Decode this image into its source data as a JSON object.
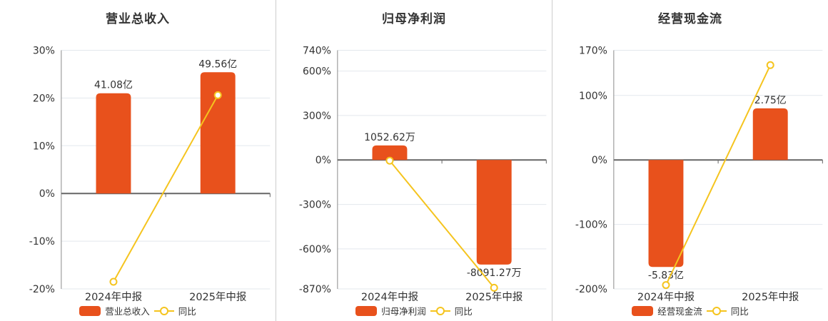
{
  "colors": {
    "bar": "#e8511c",
    "line": "#f5c41e",
    "zero_axis": "#666666",
    "y_axis_line": "#8c8c8c",
    "grid": "#e3e8ed",
    "text": "#333333",
    "divider": "#cccccc",
    "marker_fill": "#ffffff"
  },
  "chart_data": [
    {
      "type": "bar+line",
      "title": "营业总收入",
      "categories": [
        "2024年中报",
        "2025年中报"
      ],
      "bar_series": {
        "name": "营业总收入",
        "labels": [
          "41.08亿",
          "49.56亿"
        ],
        "plot_values_pct": [
          21.0,
          25.4
        ]
      },
      "line_series": {
        "name": "同比",
        "values_pct": [
          -18.5,
          20.6
        ]
      },
      "ylim": [
        -20,
        30
      ],
      "y_ticks_pct": [
        30,
        20,
        10,
        0,
        -10,
        -20
      ],
      "y_tick_labels": [
        "30%",
        "20%",
        "10%",
        "0%",
        "-10%",
        "-20%"
      ],
      "legend": [
        "营业总收入",
        "同比"
      ],
      "legend_position": "bottom",
      "grid": "on"
    },
    {
      "type": "bar+line",
      "title": "归母净利润",
      "categories": [
        "2024年中报",
        "2025年中报"
      ],
      "bar_series": {
        "name": "归母净利润",
        "labels": [
          "1052.62万",
          "-8091.27万"
        ],
        "plot_values_pct": [
          98,
          -706
        ]
      },
      "line_series": {
        "name": "同比",
        "values_pct": [
          -5,
          -862
        ]
      },
      "ylim": [
        -870,
        740
      ],
      "y_ticks_pct": [
        740,
        600,
        300,
        0,
        -300,
        -600,
        -870
      ],
      "y_tick_labels": [
        "740%",
        "600%",
        "300%",
        "0%",
        "-300%",
        "-600%",
        "-870%"
      ],
      "legend": [
        "归母净利润",
        "同比"
      ],
      "legend_position": "bottom",
      "grid": "on"
    },
    {
      "type": "bar+line",
      "title": "经营现金流",
      "categories": [
        "2024年中报",
        "2025年中报"
      ],
      "bar_series": {
        "name": "经营现金流",
        "labels": [
          "-5.83亿",
          "2.75亿"
        ],
        "plot_values_pct": [
          -166,
          80
        ]
      },
      "line_series": {
        "name": "同比",
        "values_pct": [
          -194,
          147
        ]
      },
      "ylim": [
        -200,
        170
      ],
      "y_ticks_pct": [
        170,
        100,
        0,
        -100,
        -200
      ],
      "y_tick_labels": [
        "170%",
        "100%",
        "0%",
        "-100%",
        "-200%"
      ],
      "legend": [
        "经营现金流",
        "同比"
      ],
      "legend_position": "bottom",
      "grid": "on"
    }
  ]
}
